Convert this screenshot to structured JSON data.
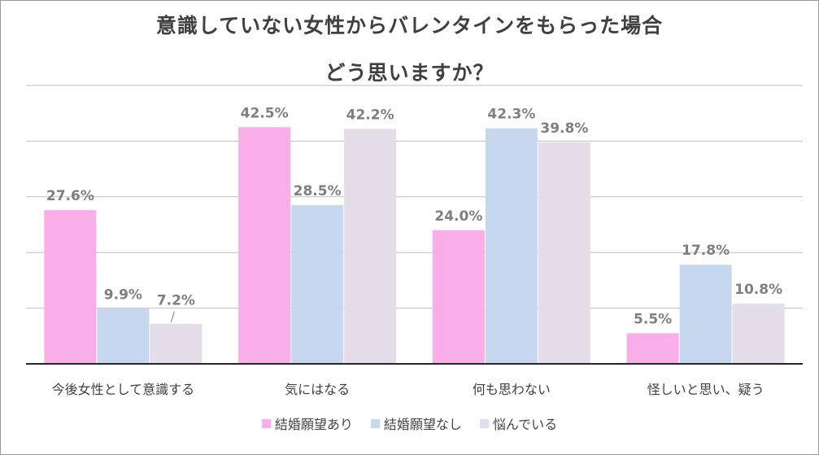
{
  "chart_data": {
    "type": "bar",
    "title_lines": [
      "意識していない女性からバレンタインをもらった場合",
      "どう思いますか？"
    ],
    "categories": [
      "今後女性として意識する",
      "気にはなる",
      "何も思わない",
      "怪しいと思い、疑う"
    ],
    "series": [
      {
        "name": "結婚願望あり",
        "values": [
          27.6,
          42.5,
          24.0,
          5.5
        ],
        "labels": [
          "27.6%",
          "42.5%",
          "24.0%",
          "5.5%"
        ],
        "color": "#F9AEE9"
      },
      {
        "name": "結婚願望なし",
        "values": [
          9.9,
          28.5,
          42.3,
          17.8
        ],
        "labels": [
          "9.9%",
          "28.5%",
          "42.3%",
          "17.8%"
        ],
        "color": "#C6D8F0"
      },
      {
        "name": "悩んでいる",
        "values": [
          7.2,
          42.2,
          39.8,
          10.8
        ],
        "labels": [
          "7.2%",
          "42.2%",
          "39.8%",
          "10.8%"
        ],
        "color": "#E5DEEA"
      }
    ],
    "ylim": [
      0,
      50
    ],
    "gridlines": [
      10,
      20,
      30,
      40,
      50
    ],
    "grid": true,
    "legend_position": "bottom",
    "xlabel": "",
    "ylabel": ""
  },
  "colors": {
    "grid": "#BFBFBF",
    "axis": "#262626",
    "label": "#7F7F7F",
    "category_text": "#404040"
  }
}
